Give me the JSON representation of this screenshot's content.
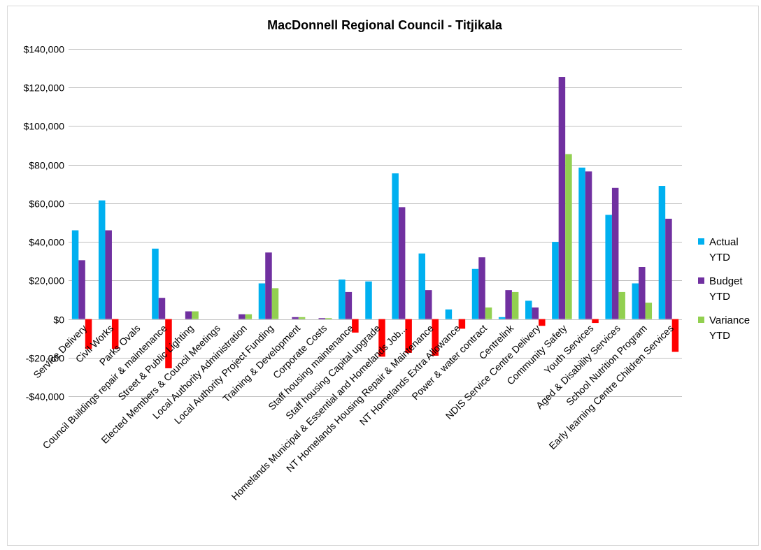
{
  "chart_data": {
    "type": "bar",
    "title": "MacDonnell Regional Council - Titjikala",
    "xlabel": "",
    "ylabel": "",
    "ylim": [
      -40000,
      140000
    ],
    "yticks": [
      -40000,
      -20000,
      0,
      20000,
      40000,
      60000,
      80000,
      100000,
      120000,
      140000
    ],
    "ytick_labels": [
      "-$40,000",
      "-$20,000",
      "$0",
      "$20,000",
      "$40,000",
      "$60,000",
      "$80,000",
      "$100,000",
      "$120,000",
      "$140,000"
    ],
    "grid": true,
    "legend_position": "right",
    "categories": [
      "Service Delivery",
      "Civil Works",
      "Parks Ovals",
      "Council Buildings repair & maintenance",
      "Street & Public Lighting",
      "Elected Members & Council Meetings",
      "Local Authority Administration",
      "Local Authority Project Funding",
      "Training & Development",
      "Corporate Costs",
      "Staff housing maintenance",
      "Staff housing Capital upgrade",
      "Homelands Municipal & Essential and Homelands Job...",
      "NT Homelands Housing Repair & Maintenance",
      "NT Homelands Extra Allowance",
      "Power & water contract",
      "Centrelink",
      "NDIS Service Centre Delivery",
      "Community Safety",
      "Youth Services",
      "Aged & Disability Services",
      "School Nutrition Program",
      "Early learning Centre Children Services"
    ],
    "series": [
      {
        "name": "Actual YTD",
        "legend_lines": [
          "Actual",
          "YTD"
        ],
        "color": "#00b0f0",
        "values": [
          46000,
          61500,
          0,
          36500,
          0,
          0,
          0,
          18500,
          0,
          0,
          20500,
          19500,
          75500,
          34000,
          5000,
          26000,
          1000,
          9500,
          40000,
          78500,
          54000,
          18500,
          69000
        ]
      },
      {
        "name": "Budget YTD",
        "legend_lines": [
          "Budget",
          "YTD"
        ],
        "color": "#7030a0",
        "values": [
          30500,
          46000,
          0,
          11000,
          4000,
          0,
          2500,
          34500,
          1000,
          500,
          14000,
          0,
          58000,
          15000,
          0,
          32000,
          15000,
          6000,
          125500,
          76500,
          68000,
          27000,
          52000
        ]
      },
      {
        "name": "Variance YTD",
        "legend_lines": [
          "Variance",
          "YTD"
        ],
        "color": "#92d050",
        "negative_color": "#ff0000",
        "values": [
          -15500,
          -15500,
          0,
          -25500,
          4000,
          0,
          2500,
          16000,
          1000,
          500,
          -7000,
          -19500,
          -17500,
          -19000,
          -5000,
          6000,
          14000,
          -3500,
          85500,
          -2000,
          14000,
          8500,
          -17000
        ]
      }
    ]
  }
}
